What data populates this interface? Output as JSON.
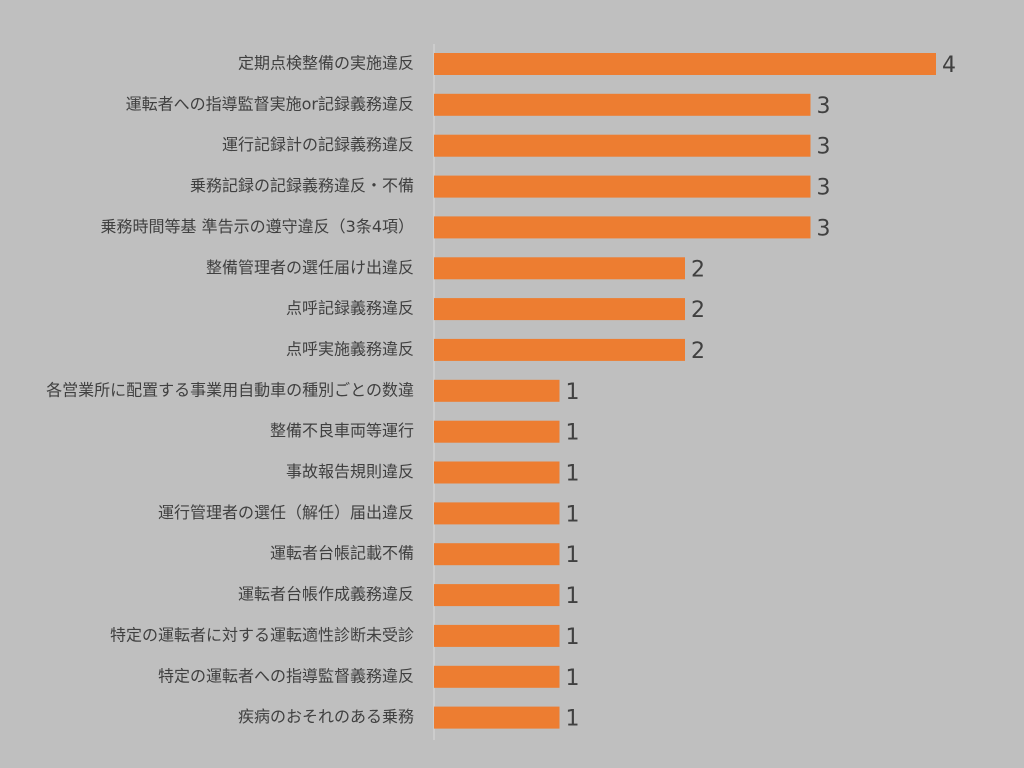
{
  "chart_data": {
    "type": "bar",
    "orientation": "horizontal",
    "categories": [
      "定期点検整備の実施違反",
      "運転者への指導監督実施or記録義務違反",
      "運行記録計の記録義務違反",
      "乗務記録の記録義務違反・不備",
      "乗務時間等基 準告示の遵守違反（3条4項）",
      "整備管理者の選任届け出違反",
      "点呼記録義務違反",
      "点呼実施義務違反",
      "各営業所に配置する事業用自動車の種別ごとの数違",
      "整備不良車両等運行",
      "事故報告規則違反",
      "運行管理者の選任（解任）届出違反",
      "運転者台帳記載不備",
      "運転者台帳作成義務違反",
      "特定の運転者に対する運転適性診断未受診",
      "特定の運転者への指導監督義務違反",
      "疾病のおそれのある乗務"
    ],
    "values": [
      4,
      3,
      3,
      3,
      3,
      2,
      2,
      2,
      1,
      1,
      1,
      1,
      1,
      1,
      1,
      1,
      1
    ],
    "xlim": [
      0,
      4
    ],
    "grid": false,
    "legend": "none",
    "bar_color": "#ed7d31",
    "axis_color": "#d9d9d9",
    "background_color": "#bfbfbf"
  }
}
